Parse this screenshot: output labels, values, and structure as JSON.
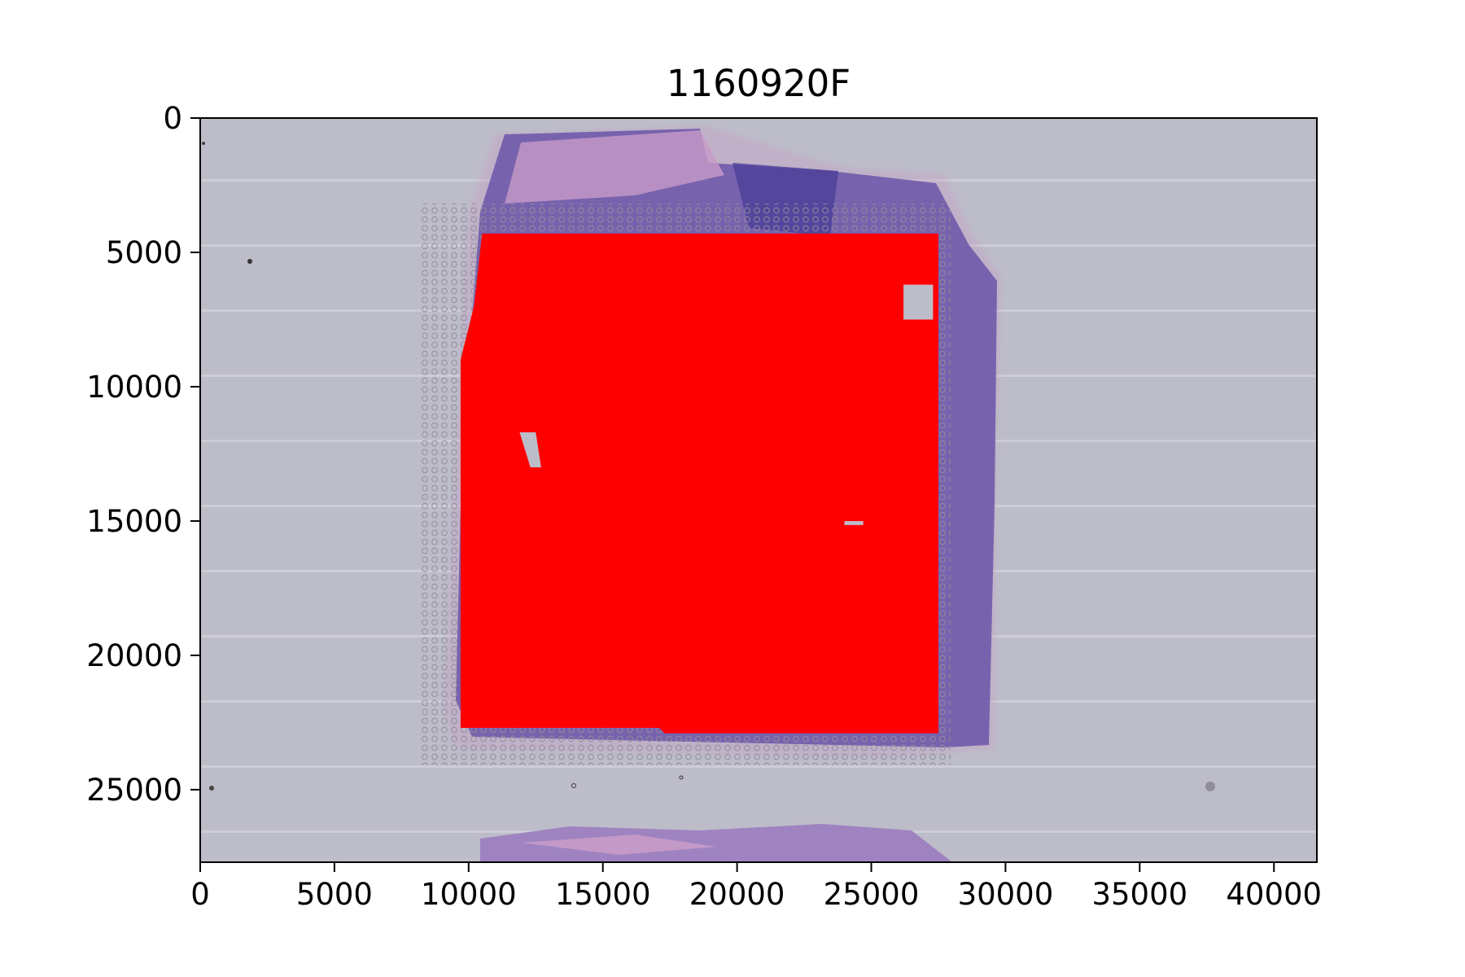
{
  "chart_data": {
    "type": "scatter",
    "title": "1160920F",
    "xlabel": "",
    "ylabel": "",
    "xlim": [
      0,
      41600
    ],
    "ylim": [
      27700,
      0
    ],
    "y_axis_inverted": true,
    "grid": false,
    "legend": "none",
    "background": "H&E stained tissue section image (purple/pink tissue on grey slide with grey spot-array circles)",
    "x_ticks": [
      0,
      5000,
      10000,
      15000,
      20000,
      25000,
      30000,
      35000,
      40000
    ],
    "y_ticks": [
      0,
      5000,
      10000,
      15000,
      20000,
      25000
    ],
    "series": [
      {
        "marker_color": "#ff0000",
        "region_outline": [
          [
            10500,
            4300
          ],
          [
            27500,
            4300
          ],
          [
            27500,
            22900
          ],
          [
            17300,
            22900
          ],
          [
            17100,
            22700
          ],
          [
            9700,
            22700
          ],
          [
            9700,
            9000
          ],
          [
            10200,
            7000
          ]
        ],
        "gaps": [
          [
            [
              11900,
              11700
            ],
            [
              12500,
              11700
            ],
            [
              12700,
              13000
            ],
            [
              12300,
              13000
            ]
          ],
          [
            [
              26200,
              6200
            ],
            [
              27300,
              6200
            ],
            [
              27300,
              7500
            ],
            [
              26200,
              7500
            ]
          ],
          [
            [
              24000,
              15000
            ],
            [
              24700,
              15000
            ],
            [
              24700,
              15150
            ],
            [
              24000,
              15150
            ]
          ]
        ]
      }
    ],
    "colors": {
      "slide": "#bdbcc9",
      "tissue": "#6a55a8",
      "tissue_pink": "#c79bc8",
      "spot_ring": "#8f8e9a",
      "points": "#ff0000"
    }
  }
}
